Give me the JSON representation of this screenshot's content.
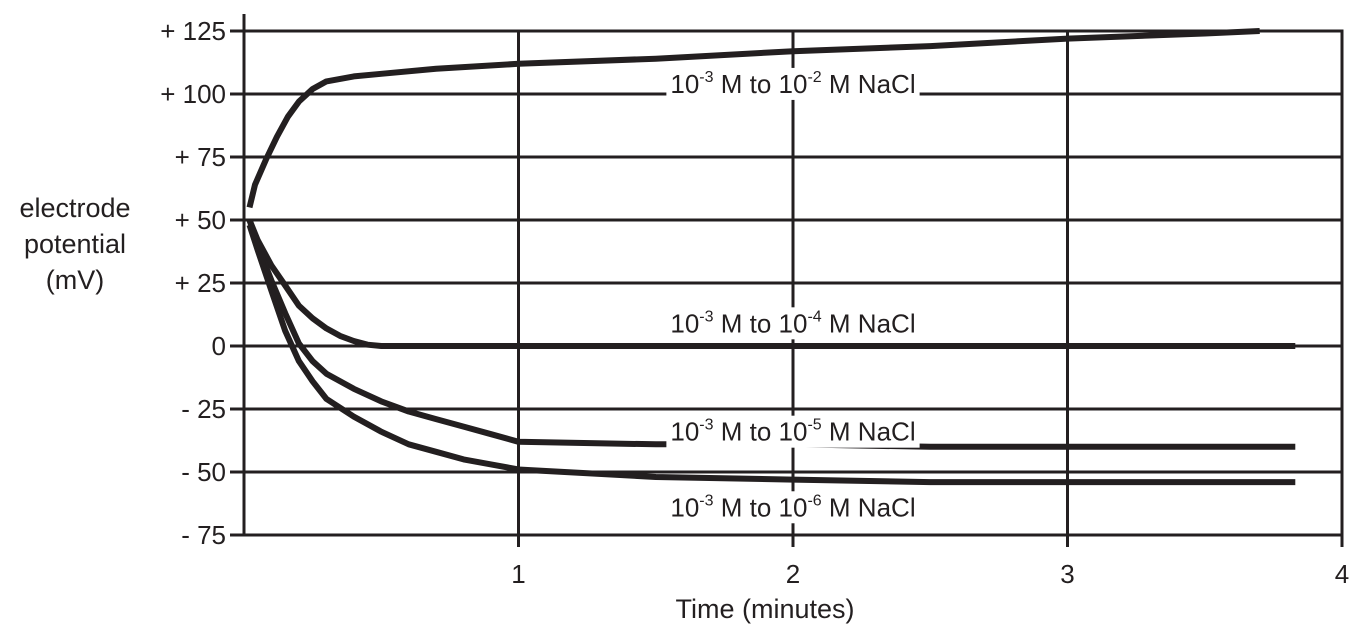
{
  "chart_data": {
    "type": "line",
    "title": "",
    "xlabel": "Time (minutes)",
    "ylabel_lines": [
      "electrode",
      "potential",
      "(mV)"
    ],
    "xlim": [
      0,
      4
    ],
    "ylim": [
      -75,
      125
    ],
    "x_ticks": [
      {
        "value": 1,
        "label": "1"
      },
      {
        "value": 2,
        "label": "2"
      },
      {
        "value": 3,
        "label": "3"
      },
      {
        "value": 4,
        "label": "4"
      }
    ],
    "y_ticks": [
      {
        "value": 125,
        "label": "+ 125"
      },
      {
        "value": 100,
        "label": "+ 100"
      },
      {
        "value": 75,
        "label": "+ 75"
      },
      {
        "value": 50,
        "label": "+ 50"
      },
      {
        "value": 25,
        "label": "+ 25"
      },
      {
        "value": 0,
        "label": "0"
      },
      {
        "value": -25,
        "label": "- 25"
      },
      {
        "value": -50,
        "label": "- 50"
      },
      {
        "value": -75,
        "label": "- 75"
      }
    ],
    "grid": {
      "horizontal": true,
      "vertical": true
    },
    "series": [
      {
        "label_parts": [
          "10",
          "-3",
          " M to 10",
          "-2",
          " M NaCl"
        ],
        "label_at": {
          "x": 2.0,
          "y": 104
        },
        "points": [
          [
            0.02,
            55
          ],
          [
            0.04,
            64
          ],
          [
            0.08,
            74
          ],
          [
            0.12,
            83
          ],
          [
            0.16,
            91
          ],
          [
            0.2,
            97
          ],
          [
            0.25,
            102
          ],
          [
            0.3,
            105
          ],
          [
            0.4,
            107
          ],
          [
            0.5,
            108
          ],
          [
            0.7,
            110
          ],
          [
            1.0,
            112
          ],
          [
            1.5,
            114
          ],
          [
            2.0,
            117
          ],
          [
            2.5,
            119
          ],
          [
            3.0,
            122
          ],
          [
            3.5,
            124
          ],
          [
            3.7,
            125
          ]
        ]
      },
      {
        "label_parts": [
          "10",
          "-3",
          " M to 10",
          "-4",
          " M NaCl"
        ],
        "label_at": {
          "x": 2.0,
          "y": 9
        },
        "points": [
          [
            0.02,
            50
          ],
          [
            0.05,
            42
          ],
          [
            0.1,
            32
          ],
          [
            0.15,
            24
          ],
          [
            0.2,
            16
          ],
          [
            0.25,
            11
          ],
          [
            0.3,
            7
          ],
          [
            0.35,
            4
          ],
          [
            0.4,
            2
          ],
          [
            0.45,
            0.5
          ],
          [
            0.5,
            0
          ],
          [
            1.0,
            0
          ],
          [
            2.0,
            0
          ],
          [
            3.0,
            0
          ],
          [
            3.83,
            0
          ]
        ]
      },
      {
        "label_parts": [
          "10",
          "-3",
          " M to 10",
          "-5",
          " M NaCl"
        ],
        "label_at": {
          "x": 2.0,
          "y": -34
        },
        "points": [
          [
            0.02,
            50
          ],
          [
            0.05,
            40
          ],
          [
            0.1,
            26
          ],
          [
            0.15,
            13
          ],
          [
            0.2,
            1
          ],
          [
            0.25,
            -6
          ],
          [
            0.3,
            -11
          ],
          [
            0.4,
            -17
          ],
          [
            0.5,
            -22
          ],
          [
            0.6,
            -26
          ],
          [
            0.7,
            -29
          ],
          [
            0.8,
            -32
          ],
          [
            0.9,
            -35
          ],
          [
            1.0,
            -38
          ],
          [
            1.5,
            -39
          ],
          [
            2.0,
            -39
          ],
          [
            2.5,
            -40
          ],
          [
            3.0,
            -40
          ],
          [
            3.83,
            -40
          ]
        ]
      },
      {
        "label_parts": [
          "10",
          "-3",
          " M to 10",
          "-6",
          " M NaCl"
        ],
        "label_at": {
          "x": 2.0,
          "y": -64
        },
        "points": [
          [
            0.02,
            48
          ],
          [
            0.05,
            38
          ],
          [
            0.1,
            22
          ],
          [
            0.15,
            6
          ],
          [
            0.2,
            -6
          ],
          [
            0.25,
            -14
          ],
          [
            0.3,
            -21
          ],
          [
            0.4,
            -28
          ],
          [
            0.5,
            -34
          ],
          [
            0.6,
            -39
          ],
          [
            0.7,
            -42
          ],
          [
            0.8,
            -45
          ],
          [
            0.9,
            -47
          ],
          [
            1.0,
            -49
          ],
          [
            1.5,
            -52
          ],
          [
            2.0,
            -53
          ],
          [
            2.5,
            -54
          ],
          [
            3.0,
            -54
          ],
          [
            3.83,
            -54
          ]
        ]
      }
    ]
  }
}
